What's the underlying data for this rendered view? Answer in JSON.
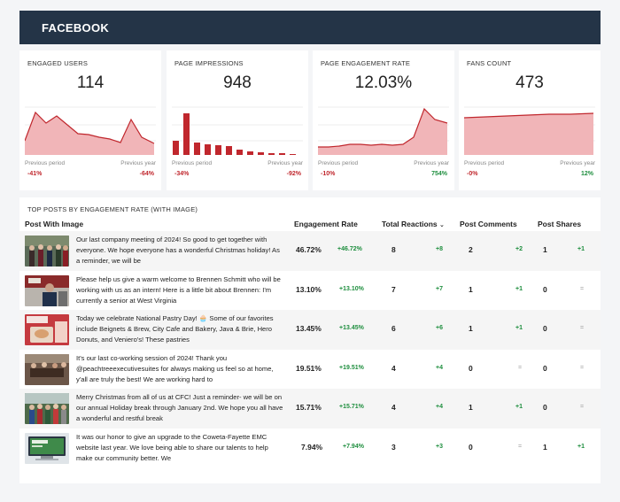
{
  "header": {
    "title": "FACEBOOK"
  },
  "kpis": [
    {
      "title": "ENGAGED USERS",
      "value": "114",
      "prev_label": "Previous period",
      "prev_change": "-41%",
      "year_label": "Previous year",
      "year_change": "-64%"
    },
    {
      "title": "PAGE IMPRESSIONS",
      "value": "948",
      "prev_label": "Previous period",
      "prev_change": "-34%",
      "year_label": "Previous year",
      "year_change": "-92%"
    },
    {
      "title": "PAGE ENGAGEMENT RATE",
      "value": "12.03%",
      "prev_label": "Previous period",
      "prev_change": "-10%",
      "year_label": "Previous year",
      "year_change": "754%"
    },
    {
      "title": "FANS COUNT",
      "value": "473",
      "prev_label": "Previous period",
      "prev_change": "-0%",
      "year_label": "Previous year",
      "year_change": "12%"
    }
  ],
  "colors": {
    "header_bg": "#243447",
    "chart_red": "#c0272d",
    "chart_fill": "#f1b5b8",
    "negative": "#c0272d",
    "positive": "#1e8e3e"
  },
  "table": {
    "title": "TOP POSTS BY ENGAGEMENT RATE (WITH IMAGE)",
    "columns": {
      "post": "Post With Image",
      "engagement": "Engagement Rate",
      "reactions": "Total Reactions",
      "comments": "Post Comments",
      "shares": "Post Shares"
    },
    "sort_icon": "chevron-down-icon",
    "rows": [
      {
        "text": "Our last company meeting of 2024! So good to get together with everyone. We hope everyone has a wonderful Christmas holiday! As a reminder, we will be",
        "rate": "46.72%",
        "rate_delta": "+46.72%",
        "reactions": "8",
        "reactions_delta": "+8",
        "comments": "2",
        "comments_delta": "+2",
        "shares": "1",
        "shares_delta": "+1"
      },
      {
        "text": "Please help us give a warm welcome to Brennen Schmitt who will be working with us as an intern! Here is a little bit about Brennen: I'm currently a senior at West Virginia",
        "rate": "13.10%",
        "rate_delta": "+13.10%",
        "reactions": "7",
        "reactions_delta": "+7",
        "comments": "1",
        "comments_delta": "+1",
        "shares": "0",
        "shares_delta": "="
      },
      {
        "text": "Today we celebrate National Pastry Day! 🧁 Some of our favorites include Beignets & Brew, City Cafe and Bakery, Java & Brie, Hero Donuts, and Venierо's! These pastries",
        "rate": "13.45%",
        "rate_delta": "+13.45%",
        "reactions": "6",
        "reactions_delta": "+6",
        "comments": "1",
        "comments_delta": "+1",
        "shares": "0",
        "shares_delta": "="
      },
      {
        "text": "It's our last co-working session of 2024! Thank you @peachtreeexecutivesuites for always making us feel so at home, y'all are truly the best! We are working hard to",
        "rate": "19.51%",
        "rate_delta": "+19.51%",
        "reactions": "4",
        "reactions_delta": "+4",
        "comments": "0",
        "comments_delta": "=",
        "shares": "0",
        "shares_delta": "="
      },
      {
        "text": "Merry Christmas from all of us at CFC! Just a reminder- we will be on our annual Holiday break through January 2nd. We hope you all have a wonderful and restful break",
        "rate": "15.71%",
        "rate_delta": "+15.71%",
        "reactions": "4",
        "reactions_delta": "+4",
        "comments": "1",
        "comments_delta": "+1",
        "shares": "0",
        "shares_delta": "="
      },
      {
        "text": "It was our honor to give an upgrade to the Coweta-Fayette EMC website last year. We love being able to share our talents to help make our community better. We",
        "rate": "7.94%",
        "rate_delta": "+7.94%",
        "reactions": "3",
        "reactions_delta": "+3",
        "comments": "0",
        "comments_delta": "=",
        "shares": "1",
        "shares_delta": "+1"
      }
    ]
  }
}
